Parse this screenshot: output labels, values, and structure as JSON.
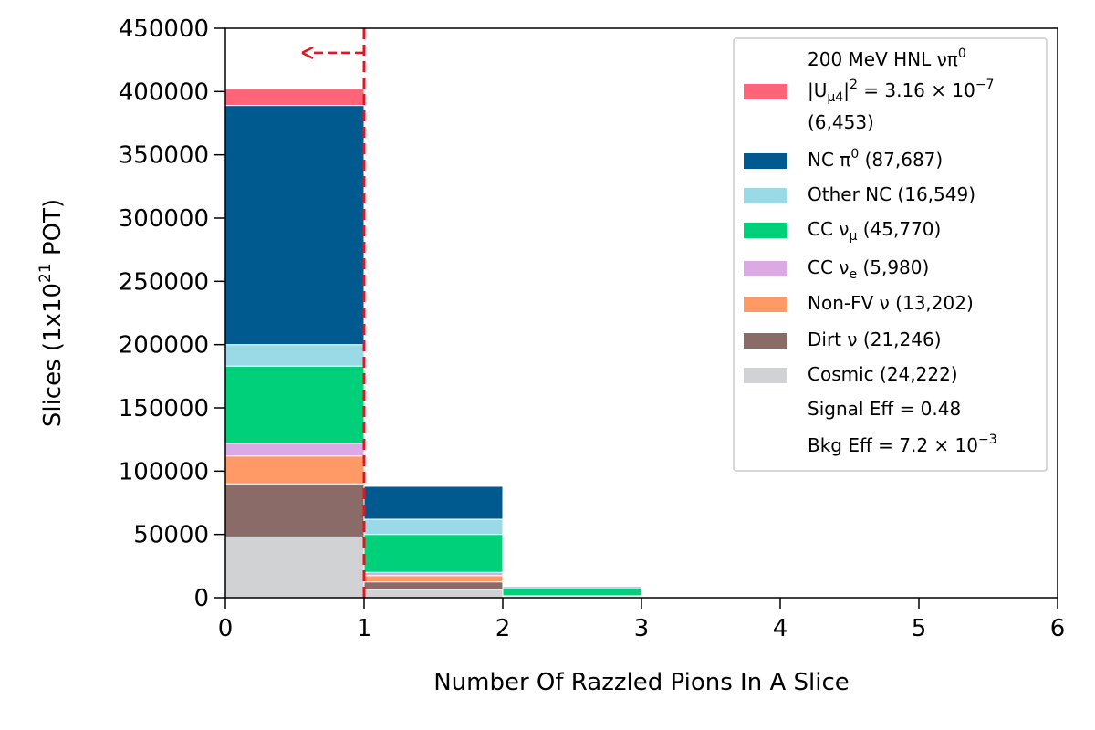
{
  "chart_data": {
    "type": "bar",
    "stacked": true,
    "bins": [
      [
        0,
        1
      ],
      [
        1,
        2
      ],
      [
        2,
        3
      ],
      [
        3,
        4
      ],
      [
        4,
        5
      ],
      [
        5,
        6
      ]
    ],
    "xlabel": "Number Of Razzled Pions In A Slice",
    "ylabel_main": "Slices (1x10",
    "ylabel_sup": "21",
    "ylabel_end": " POT)",
    "xlim": [
      0,
      6
    ],
    "ylim": [
      0,
      450000
    ],
    "xticks": [
      "0",
      "1",
      "2",
      "3",
      "4",
      "5",
      "6"
    ],
    "yticks": [
      "0",
      "50000",
      "100000",
      "150000",
      "200000",
      "250000",
      "300000",
      "350000",
      "400000",
      "450000"
    ],
    "cut_line": {
      "x": 1,
      "color": "#e8141c",
      "direction": "left"
    },
    "legend_position": "top-right",
    "series": [
      {
        "key": "cosmic",
        "color": "#d1d2d4",
        "values": [
          48000,
          6500,
          400,
          0,
          0,
          0
        ]
      },
      {
        "key": "dirt",
        "color": "#8a6b67",
        "values": [
          42000,
          6000,
          400,
          0,
          0,
          0
        ]
      },
      {
        "key": "nonfv",
        "color": "#ff9966",
        "values": [
          22000,
          5000,
          400,
          0,
          0,
          0
        ]
      },
      {
        "key": "ccnue",
        "color": "#dba9e3",
        "values": [
          10000,
          2500,
          300,
          0,
          0,
          0
        ]
      },
      {
        "key": "ccnumu",
        "color": "#00d07a",
        "values": [
          61000,
          30000,
          5500,
          0,
          0,
          0
        ]
      },
      {
        "key": "othernc",
        "color": "#99dae6",
        "values": [
          17000,
          12000,
          2000,
          0,
          0,
          0
        ]
      },
      {
        "key": "ncpi0",
        "color": "#005a90",
        "values": [
          189000,
          26000,
          500,
          0,
          0,
          0
        ]
      },
      {
        "key": "signal",
        "color": "#ff6478",
        "values": [
          13000,
          400,
          0,
          0,
          0,
          0
        ]
      }
    ],
    "legend": {
      "signal_lines": [
        "200 MeV HNL",
        "|U",
        "|",
        " = 3.16",
        "(6,453)"
      ],
      "signal_title": "200 MeV HNL νπ",
      "signal_title_sup": "0",
      "signal_coupling_pre": "|U",
      "signal_coupling_sub": "μ4",
      "signal_coupling_mid": "|",
      "signal_coupling_sup": "2",
      "signal_coupling_val": " = 3.16 × 10",
      "signal_coupling_exp": "−7",
      "signal_count": " (6,453)",
      "ncpi0_pre": "NC π",
      "ncpi0_sup": "0",
      "ncpi0_post": " (87,687)",
      "othernc": "Other NC (16,549)",
      "ccnumu_pre": "CC ν",
      "ccnumu_sub": "μ",
      "ccnumu_post": " (45,770)",
      "ccnue_pre": "CC ν",
      "ccnue_sub": "e",
      "ccnue_post": " (5,980)",
      "nonfv": "Non-FV ν (13,202)",
      "dirt": "Dirt ν (21,246)",
      "cosmic": "Cosmic (24,222)",
      "signal_eff": "Signal Eff = 0.48",
      "bkg_eff_pre": "Bkg Eff = 7.2 × 10",
      "bkg_eff_exp": "−3"
    }
  }
}
